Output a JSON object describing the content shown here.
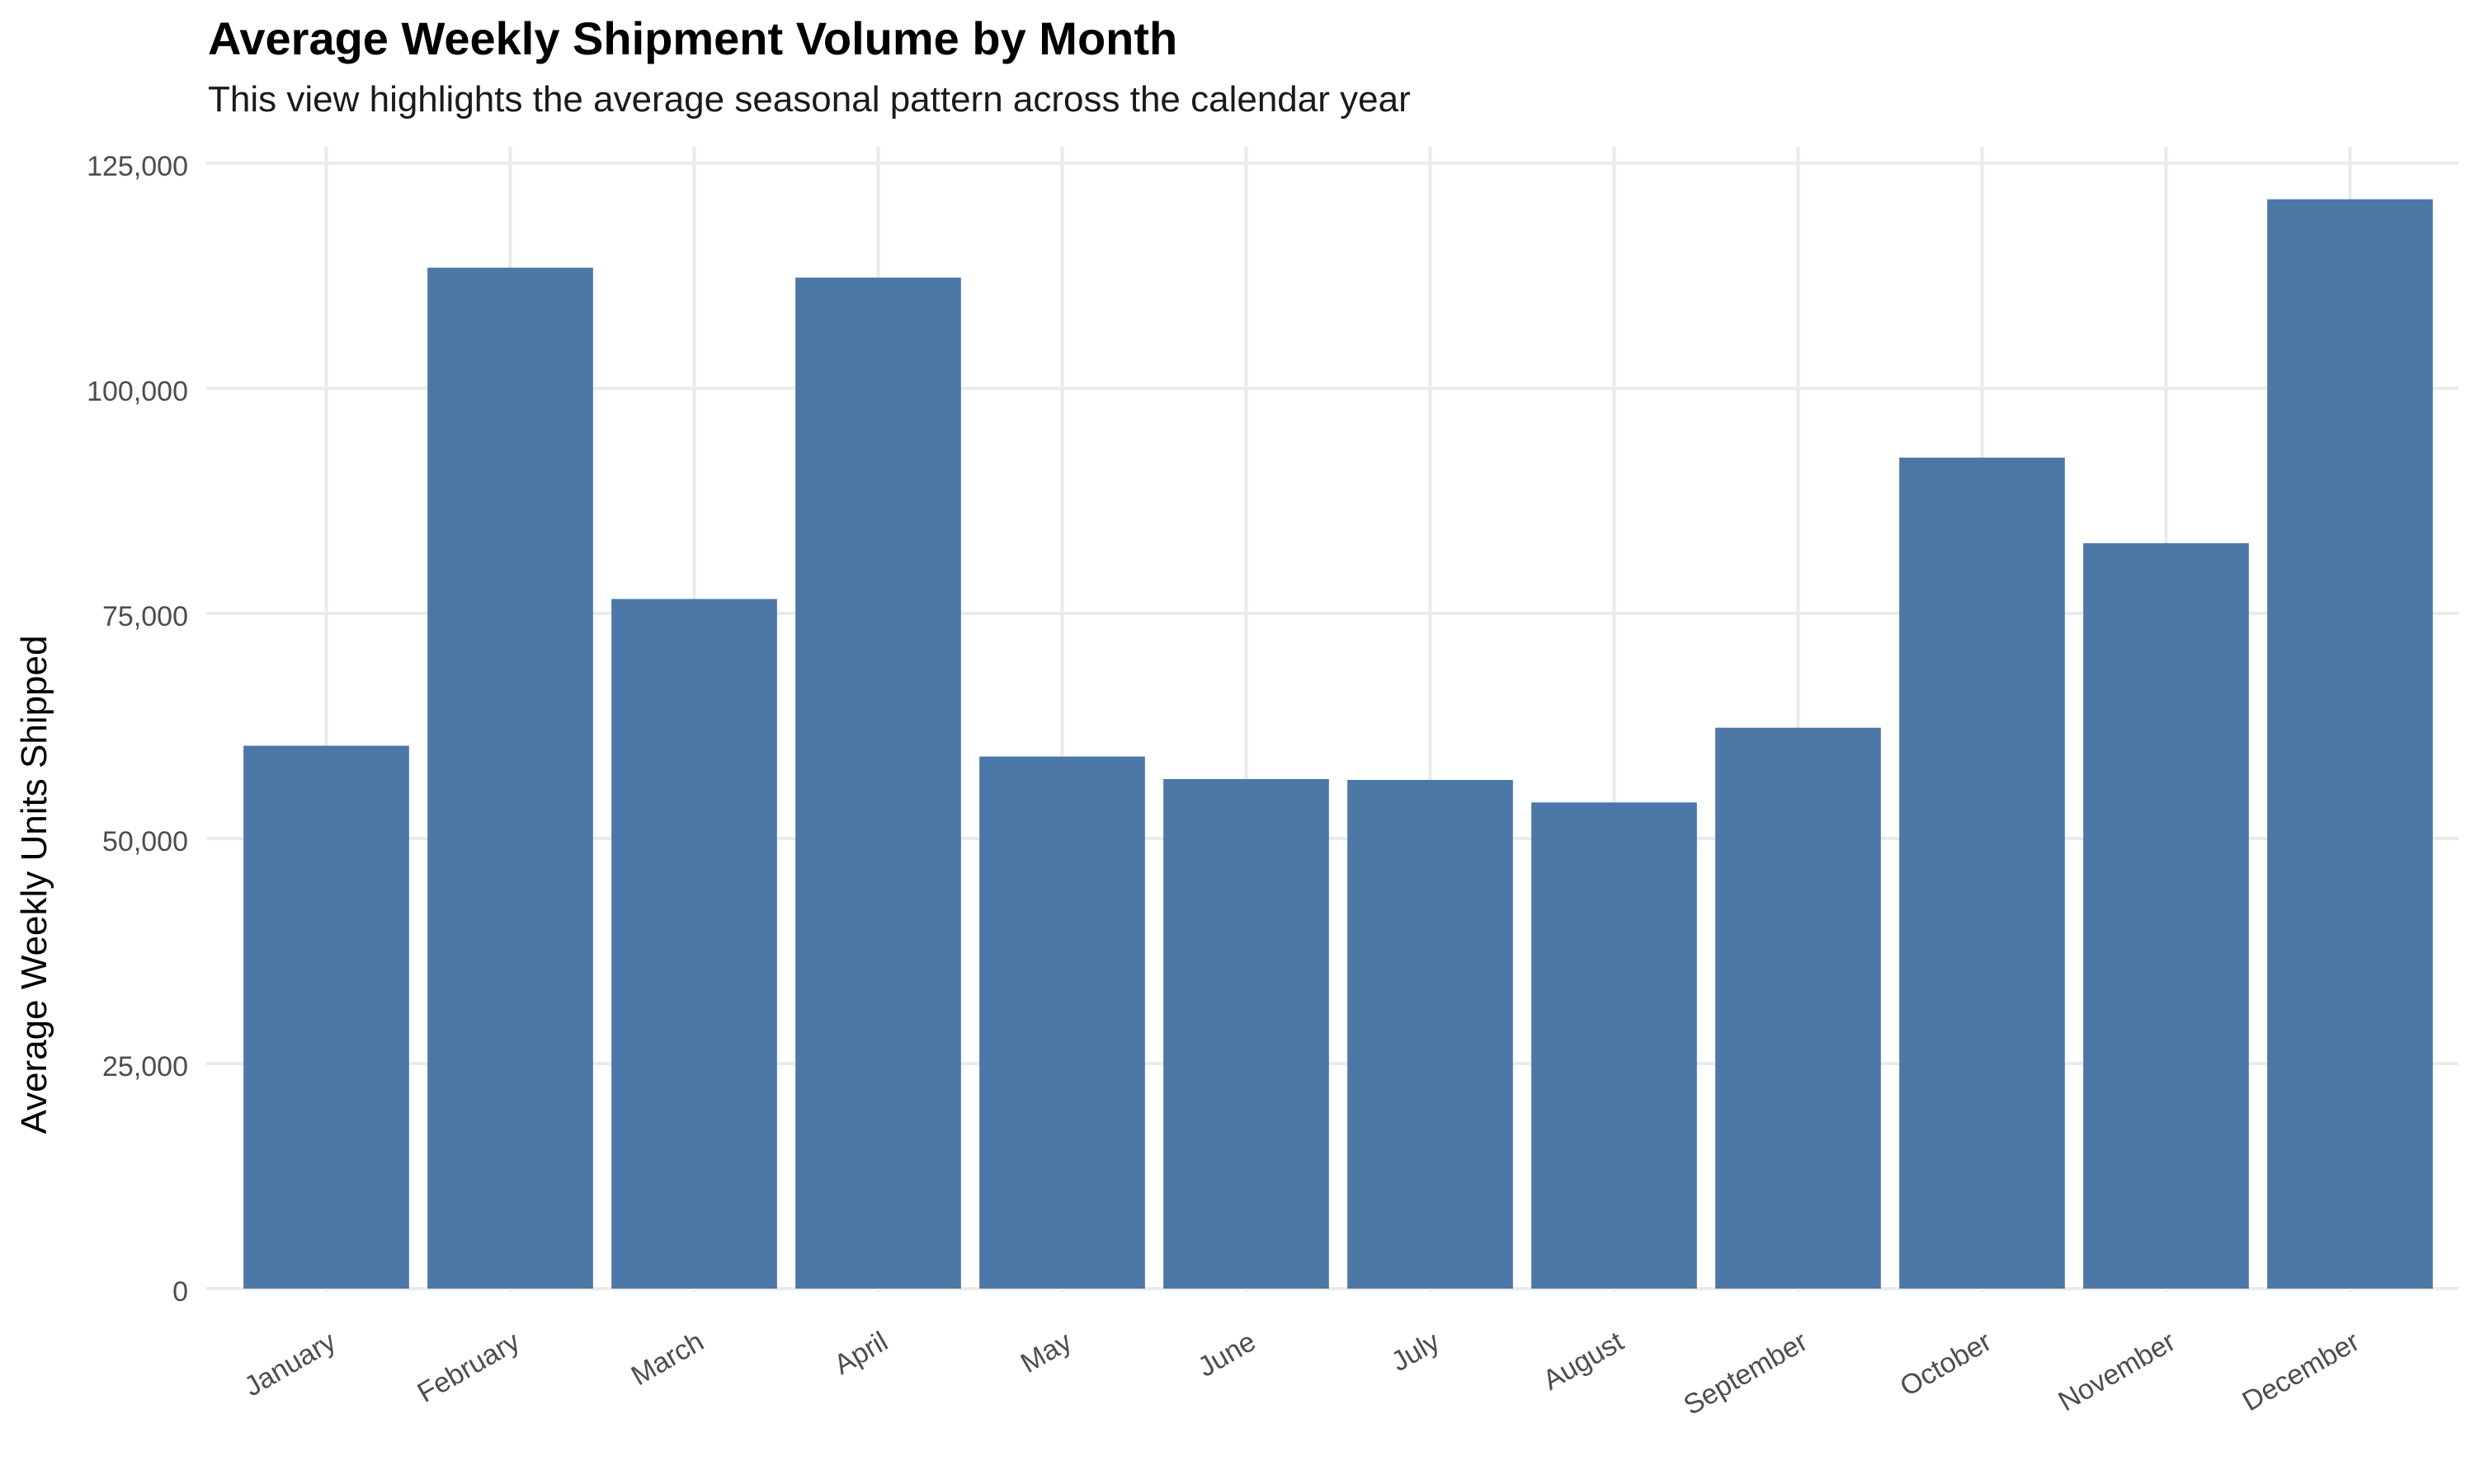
{
  "chart_data": {
    "type": "bar",
    "title": "Average Weekly Shipment Volume by Month",
    "subtitle": "This view highlights the average seasonal pattern across the calendar year",
    "xlabel": "",
    "ylabel": "Average Weekly Units Shipped",
    "categories": [
      "January",
      "February",
      "March",
      "April",
      "May",
      "June",
      "July",
      "August",
      "September",
      "October",
      "November",
      "December"
    ],
    "values": [
      60300,
      113400,
      76600,
      112300,
      59100,
      56600,
      56500,
      54000,
      62300,
      92300,
      82800,
      121000
    ],
    "ylim": [
      0,
      125000
    ],
    "yticks": [
      0,
      25000,
      50000,
      75000,
      100000,
      125000
    ],
    "ytick_labels": [
      "0",
      "25,000",
      "50,000",
      "75,000",
      "100,000",
      "125,000"
    ],
    "grid": true,
    "bar_color": "#4c78a8",
    "grid_color": "#ebebeb"
  }
}
